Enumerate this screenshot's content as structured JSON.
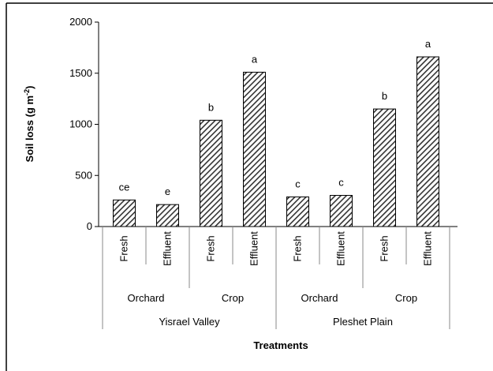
{
  "chart_data": {
    "type": "bar",
    "ylabel": {
      "text": "Soil loss (g m",
      "superscript": "-2",
      "close": ")"
    },
    "xlabel": "Treatments",
    "categories": [
      "Fresh",
      "Effluent",
      "Fresh",
      "Effluent",
      "Fresh",
      "Effluent",
      "Fresh",
      "Effluent"
    ],
    "subgroups": [
      "Orchard",
      "Crop",
      "Orchard",
      "Crop"
    ],
    "groups": [
      "Yisrael Valley",
      "Pleshet Plain"
    ],
    "values": [
      260,
      215,
      1040,
      1510,
      290,
      305,
      1150,
      1660
    ],
    "annotations": [
      "ce",
      "e",
      "b",
      "a",
      "c",
      "c",
      "b",
      "a"
    ],
    "color": "#333333",
    "ylim": [
      0,
      2000
    ],
    "yticks": [
      0,
      500,
      1000,
      1500,
      2000
    ]
  }
}
